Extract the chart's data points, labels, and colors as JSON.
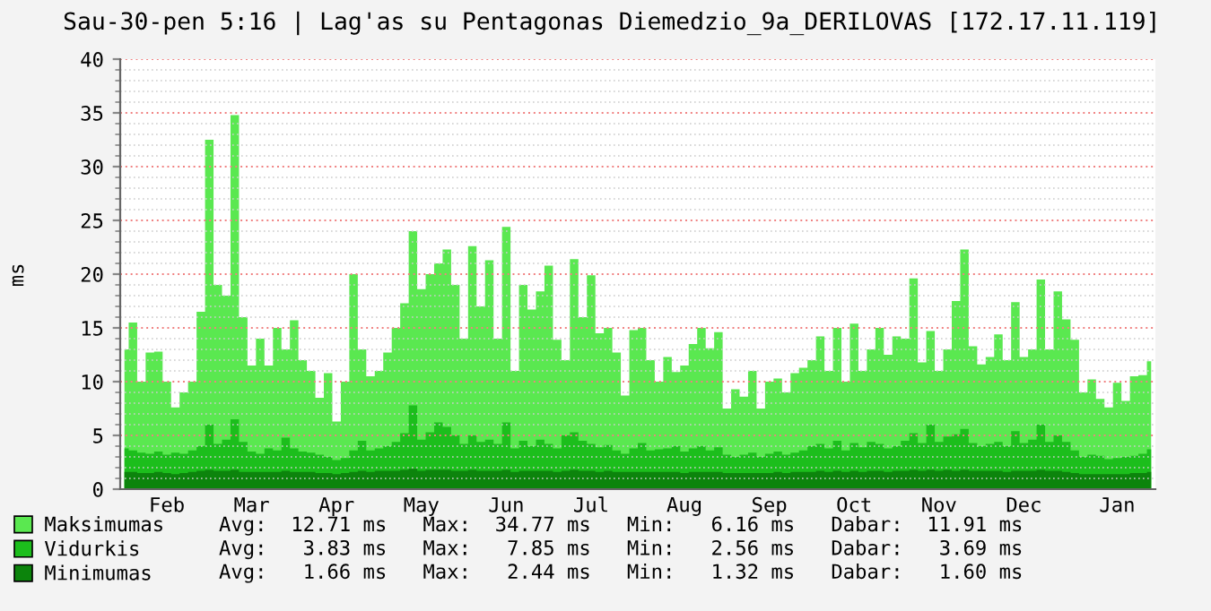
{
  "chart_data": {
    "type": "area",
    "title": "Sau-30-pen 5:16 | Lag'as su Pentagonas Diemedzio_9a_DERILOVAS [172.17.11.119]",
    "ylabel": "ms",
    "categories": [
      null,
      null,
      null,
      null,
      null,
      "Feb",
      null,
      null,
      null,
      null,
      null,
      null,
      null,
      null,
      null,
      "Mar",
      null,
      null,
      null,
      null,
      null,
      null,
      null,
      null,
      null,
      "Apr",
      null,
      null,
      null,
      null,
      null,
      null,
      null,
      null,
      null,
      "May",
      null,
      null,
      null,
      null,
      null,
      null,
      null,
      null,
      null,
      "Jun",
      null,
      null,
      null,
      null,
      null,
      null,
      null,
      null,
      null,
      "Jul",
      null,
      null,
      null,
      null,
      null,
      null,
      null,
      null,
      null,
      null,
      "Aug",
      null,
      null,
      null,
      null,
      null,
      null,
      null,
      null,
      null,
      "Sep",
      null,
      null,
      null,
      null,
      null,
      null,
      null,
      null,
      null,
      "Oct",
      null,
      null,
      null,
      null,
      null,
      null,
      null,
      null,
      null,
      "Nov",
      null,
      null,
      null,
      null,
      null,
      null,
      null,
      null,
      null,
      "Dec",
      null,
      null,
      null,
      null,
      null,
      null,
      null,
      null,
      null,
      null,
      "Jan",
      null,
      null,
      null,
      null
    ],
    "series": [
      {
        "name": "Maksimumas",
        "color": "#5ae850",
        "values": [
          13,
          15.5,
          10,
          12.7,
          12.8,
          10,
          7.6,
          9,
          10,
          16.5,
          32.5,
          19,
          18,
          34.8,
          16,
          11.5,
          14,
          11.5,
          15,
          13,
          15.7,
          12,
          11,
          8.5,
          10.8,
          6.3,
          10,
          20,
          13,
          10.5,
          11,
          12.7,
          15,
          17.3,
          24,
          18.6,
          20,
          21,
          22.3,
          19,
          14,
          22.6,
          17,
          21.3,
          14,
          24.4,
          11,
          19,
          16.7,
          18.4,
          20.8,
          13.9,
          12,
          21.4,
          16,
          19.9,
          14.5,
          15,
          12.7,
          8.7,
          14.8,
          15,
          12,
          10,
          12.3,
          10.9,
          11.5,
          13.5,
          15,
          13.1,
          14.6,
          7.5,
          9.3,
          8.6,
          11,
          7.5,
          10,
          10.3,
          9,
          10.8,
          11.3,
          12,
          14.2,
          11,
          15,
          10,
          15.4,
          11,
          13,
          15,
          12.5,
          14.2,
          14,
          19.6,
          11.8,
          14.7,
          11,
          13,
          17.5,
          22.3,
          13.3,
          11.6,
          12.3,
          14.4,
          12,
          17.4,
          12.3,
          13,
          19.5,
          13,
          18.4,
          15.8,
          13.9,
          9,
          10.2,
          8.4,
          7.6,
          9.9,
          8.2,
          10.5,
          10.6,
          11.9
        ]
      },
      {
        "name": "Vidurkis",
        "color": "#1cbe1c",
        "values": [
          3.8,
          3.6,
          3.4,
          3.3,
          3.5,
          3.2,
          3.4,
          3.3,
          3.6,
          4.0,
          6,
          4.2,
          4.6,
          6.5,
          4.4,
          3.5,
          3.3,
          3.8,
          3.6,
          4.8,
          3.8,
          3.5,
          3.4,
          3.2,
          3.0,
          2.7,
          2.9,
          3.6,
          4.5,
          3.6,
          3.8,
          4,
          4.4,
          5.2,
          7.8,
          4.6,
          5.3,
          6.2,
          5.8,
          5,
          4.2,
          5,
          4.4,
          4.6,
          4.2,
          6.2,
          3.8,
          4.5,
          4.0,
          4.6,
          4.2,
          3.8,
          5,
          5.3,
          4.5,
          4.2,
          3.9,
          4.1,
          3.6,
          3.3,
          3.8,
          4.3,
          3.6,
          3.7,
          3.8,
          4.0,
          3.5,
          3.8,
          4.0,
          3.6,
          3.9,
          3.2,
          3.0,
          3.2,
          3.4,
          3.0,
          3.3,
          3.5,
          3.2,
          3.4,
          3.6,
          4.0,
          4.2,
          3.8,
          4.5,
          3.6,
          4.3,
          3.9,
          4.4,
          4.2,
          3.8,
          4.0,
          4.5,
          5.2,
          4.3,
          6.0,
          4.4,
          4.9,
          5.1,
          5.6,
          4.3,
          4.0,
          4.2,
          4.4,
          4.0,
          5.4,
          4.3,
          4.6,
          6.0,
          4.4,
          5.0,
          4.4,
          3.6,
          3.0,
          3.2,
          3.1,
          2.8,
          2.9,
          3.0,
          3.1,
          3.3,
          3.7
        ]
      },
      {
        "name": "Minimumas",
        "color": "#0c840c",
        "values": [
          1.6,
          1.6,
          1.5,
          1.5,
          1.6,
          1.5,
          1.4,
          1.5,
          1.6,
          1.7,
          1.8,
          1.7,
          1.7,
          1.8,
          1.6,
          1.6,
          1.6,
          1.6,
          1.6,
          1.7,
          1.6,
          1.6,
          1.6,
          1.5,
          1.5,
          1.4,
          1.5,
          1.6,
          1.7,
          1.6,
          1.7,
          1.7,
          1.7,
          1.8,
          1.9,
          1.7,
          1.8,
          1.8,
          1.8,
          1.7,
          1.7,
          1.8,
          1.7,
          1.7,
          1.7,
          1.8,
          1.6,
          1.7,
          1.7,
          1.7,
          1.7,
          1.6,
          1.7,
          1.8,
          1.7,
          1.7,
          1.6,
          1.7,
          1.6,
          1.6,
          1.6,
          1.6,
          1.6,
          1.6,
          1.6,
          1.6,
          1.5,
          1.6,
          1.6,
          1.6,
          1.6,
          1.5,
          1.5,
          1.5,
          1.5,
          1.5,
          1.5,
          1.6,
          1.5,
          1.6,
          1.6,
          1.6,
          1.7,
          1.6,
          1.7,
          1.6,
          1.7,
          1.6,
          1.7,
          1.7,
          1.6,
          1.7,
          1.7,
          1.8,
          1.7,
          1.8,
          1.7,
          1.8,
          1.7,
          1.8,
          1.7,
          1.7,
          1.7,
          1.7,
          1.6,
          1.7,
          1.7,
          1.7,
          1.8,
          1.7,
          1.7,
          1.6,
          1.5,
          1.4,
          1.4,
          1.4,
          1.4,
          1.4,
          1.4,
          1.5,
          1.5,
          1.6
        ]
      }
    ],
    "ylim": [
      0,
      40
    ],
    "yticks": [
      0,
      {
        "value": 1,
        "label": null
      },
      {
        "value": 2,
        "label": null
      },
      {
        "value": 3,
        "label": null
      },
      {
        "value": 4,
        "label": null
      },
      5,
      {
        "value": 6,
        "label": null
      },
      {
        "value": 7,
        "label": null
      },
      {
        "value": 8,
        "label": null
      },
      {
        "value": 9,
        "label": null
      },
      10,
      {
        "value": 11,
        "label": null
      },
      {
        "value": 12,
        "label": null
      },
      {
        "value": 13,
        "label": null
      },
      {
        "value": 14,
        "label": null
      },
      15,
      {
        "value": 16,
        "label": null
      },
      {
        "value": 17,
        "label": null
      },
      {
        "value": 18,
        "label": null
      },
      {
        "value": 19,
        "label": null
      },
      20,
      {
        "value": 21,
        "label": null
      },
      {
        "value": 22,
        "label": null
      },
      {
        "value": 23,
        "label": null
      },
      {
        "value": 24,
        "label": null
      },
      25,
      {
        "value": 26,
        "label": null
      },
      {
        "value": 27,
        "label": null
      },
      {
        "value": 28,
        "label": null
      },
      {
        "value": 29,
        "label": null
      },
      30,
      {
        "value": 31,
        "label": null
      },
      {
        "value": 32,
        "label": null
      },
      {
        "value": 33,
        "label": null
      },
      {
        "value": 34,
        "label": null
      },
      35,
      {
        "value": 36,
        "label": null
      },
      {
        "value": 37,
        "label": null
      },
      {
        "value": 38,
        "label": null
      },
      {
        "value": 39,
        "label": null
      },
      40
    ],
    "grid": "y",
    "legend": "bottom",
    "annotations": [
      "Avg:  12.71 ms   Max:  34.77 ms   Min:   6.16 ms   Dabar:  11.91 ms",
      "Avg:   3.83 ms   Max:   7.85 ms   Min:   2.56 ms   Dabar:   3.69 ms",
      "Avg:   1.66 ms   Max:   2.44 ms   Min:   1.32 ms   Dabar:   1.60 ms"
    ]
  }
}
